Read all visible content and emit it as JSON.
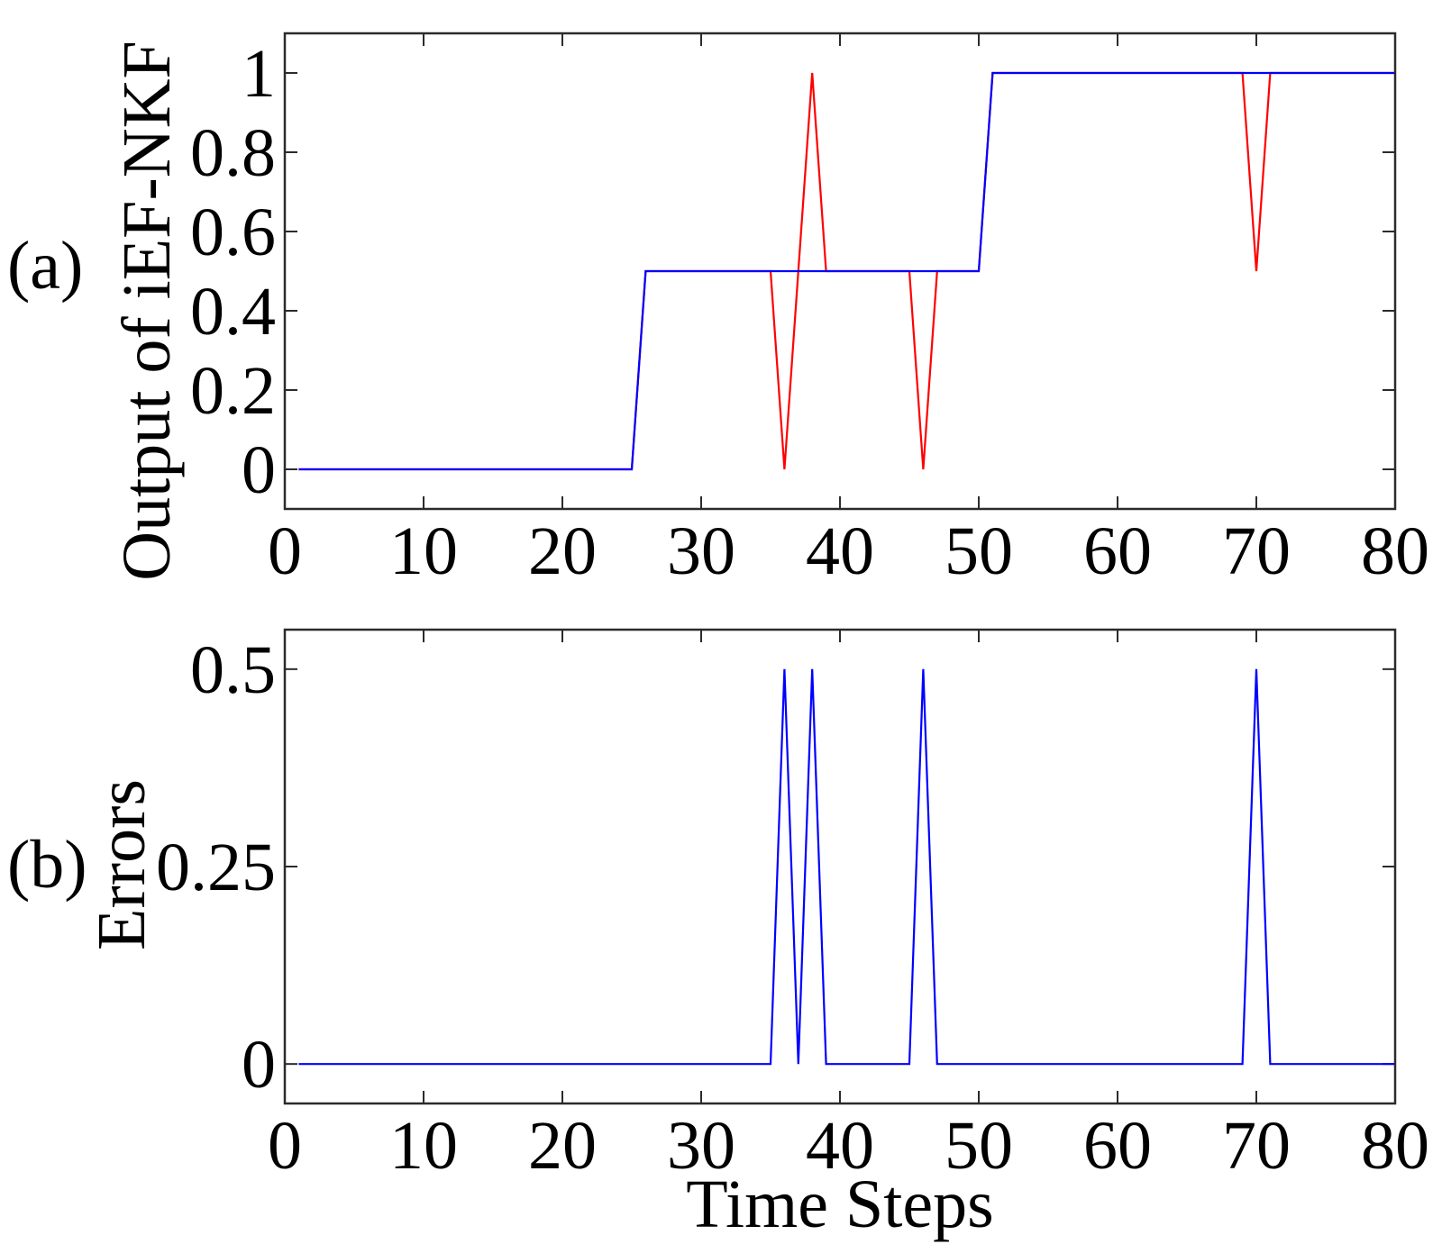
{
  "chart_data": [
    {
      "panel_label": "(a)",
      "type": "line",
      "ylabel": "Output of iEF-NKF",
      "xlabel": "",
      "xlim": [
        0,
        80
      ],
      "ylim": [
        -0.1,
        1.1
      ],
      "x_ticks": [
        0,
        10,
        20,
        30,
        40,
        50,
        60,
        70,
        80
      ],
      "y_ticks": [
        0,
        0.2,
        0.4,
        0.6,
        0.8,
        1
      ],
      "x_tick_labels": [
        "0",
        "10",
        "20",
        "30",
        "40",
        "50",
        "60",
        "70",
        "80"
      ],
      "y_tick_labels": [
        "0",
        "0.2",
        "0.4",
        "0.6",
        "0.8",
        "1"
      ],
      "grid": false,
      "series": [
        {
          "color": "#ff0000",
          "points": [
            [
              1,
              0
            ],
            [
              25,
              0
            ],
            [
              26,
              0.5
            ],
            [
              35,
              0.5
            ],
            [
              36,
              0
            ],
            [
              37,
              0.5
            ],
            [
              38,
              1
            ],
            [
              39,
              0.5
            ],
            [
              45,
              0.5
            ],
            [
              46,
              0
            ],
            [
              47,
              0.5
            ],
            [
              50,
              0.5
            ],
            [
              51,
              1
            ],
            [
              69,
              1
            ],
            [
              70,
              0.5
            ],
            [
              71,
              1
            ],
            [
              80,
              1
            ]
          ]
        },
        {
          "color": "#0000ff",
          "points": [
            [
              1,
              0
            ],
            [
              25,
              0
            ],
            [
              26,
              0.5
            ],
            [
              50,
              0.5
            ],
            [
              51,
              1
            ],
            [
              80,
              1
            ]
          ]
        }
      ]
    },
    {
      "panel_label": "(b)",
      "type": "line",
      "ylabel": "Errors",
      "xlabel": "Time Steps",
      "xlim": [
        0,
        80
      ],
      "ylim": [
        -0.05,
        0.55
      ],
      "x_ticks": [
        0,
        10,
        20,
        30,
        40,
        50,
        60,
        70,
        80
      ],
      "y_ticks": [
        0,
        0.25,
        0.5
      ],
      "x_tick_labels": [
        "0",
        "10",
        "20",
        "30",
        "40",
        "50",
        "60",
        "70",
        "80"
      ],
      "y_tick_labels": [
        "0",
        "0.25",
        "0.5"
      ],
      "grid": false,
      "series": [
        {
          "color": "#0000ff",
          "points": [
            [
              1,
              0
            ],
            [
              35,
              0
            ],
            [
              36,
              0.5
            ],
            [
              37,
              0
            ],
            [
              38,
              0.5
            ],
            [
              39,
              0
            ],
            [
              45,
              0
            ],
            [
              46,
              0.5
            ],
            [
              47,
              0
            ],
            [
              69,
              0
            ],
            [
              70,
              0.5
            ],
            [
              71,
              0
            ],
            [
              80,
              0
            ]
          ]
        }
      ]
    }
  ]
}
